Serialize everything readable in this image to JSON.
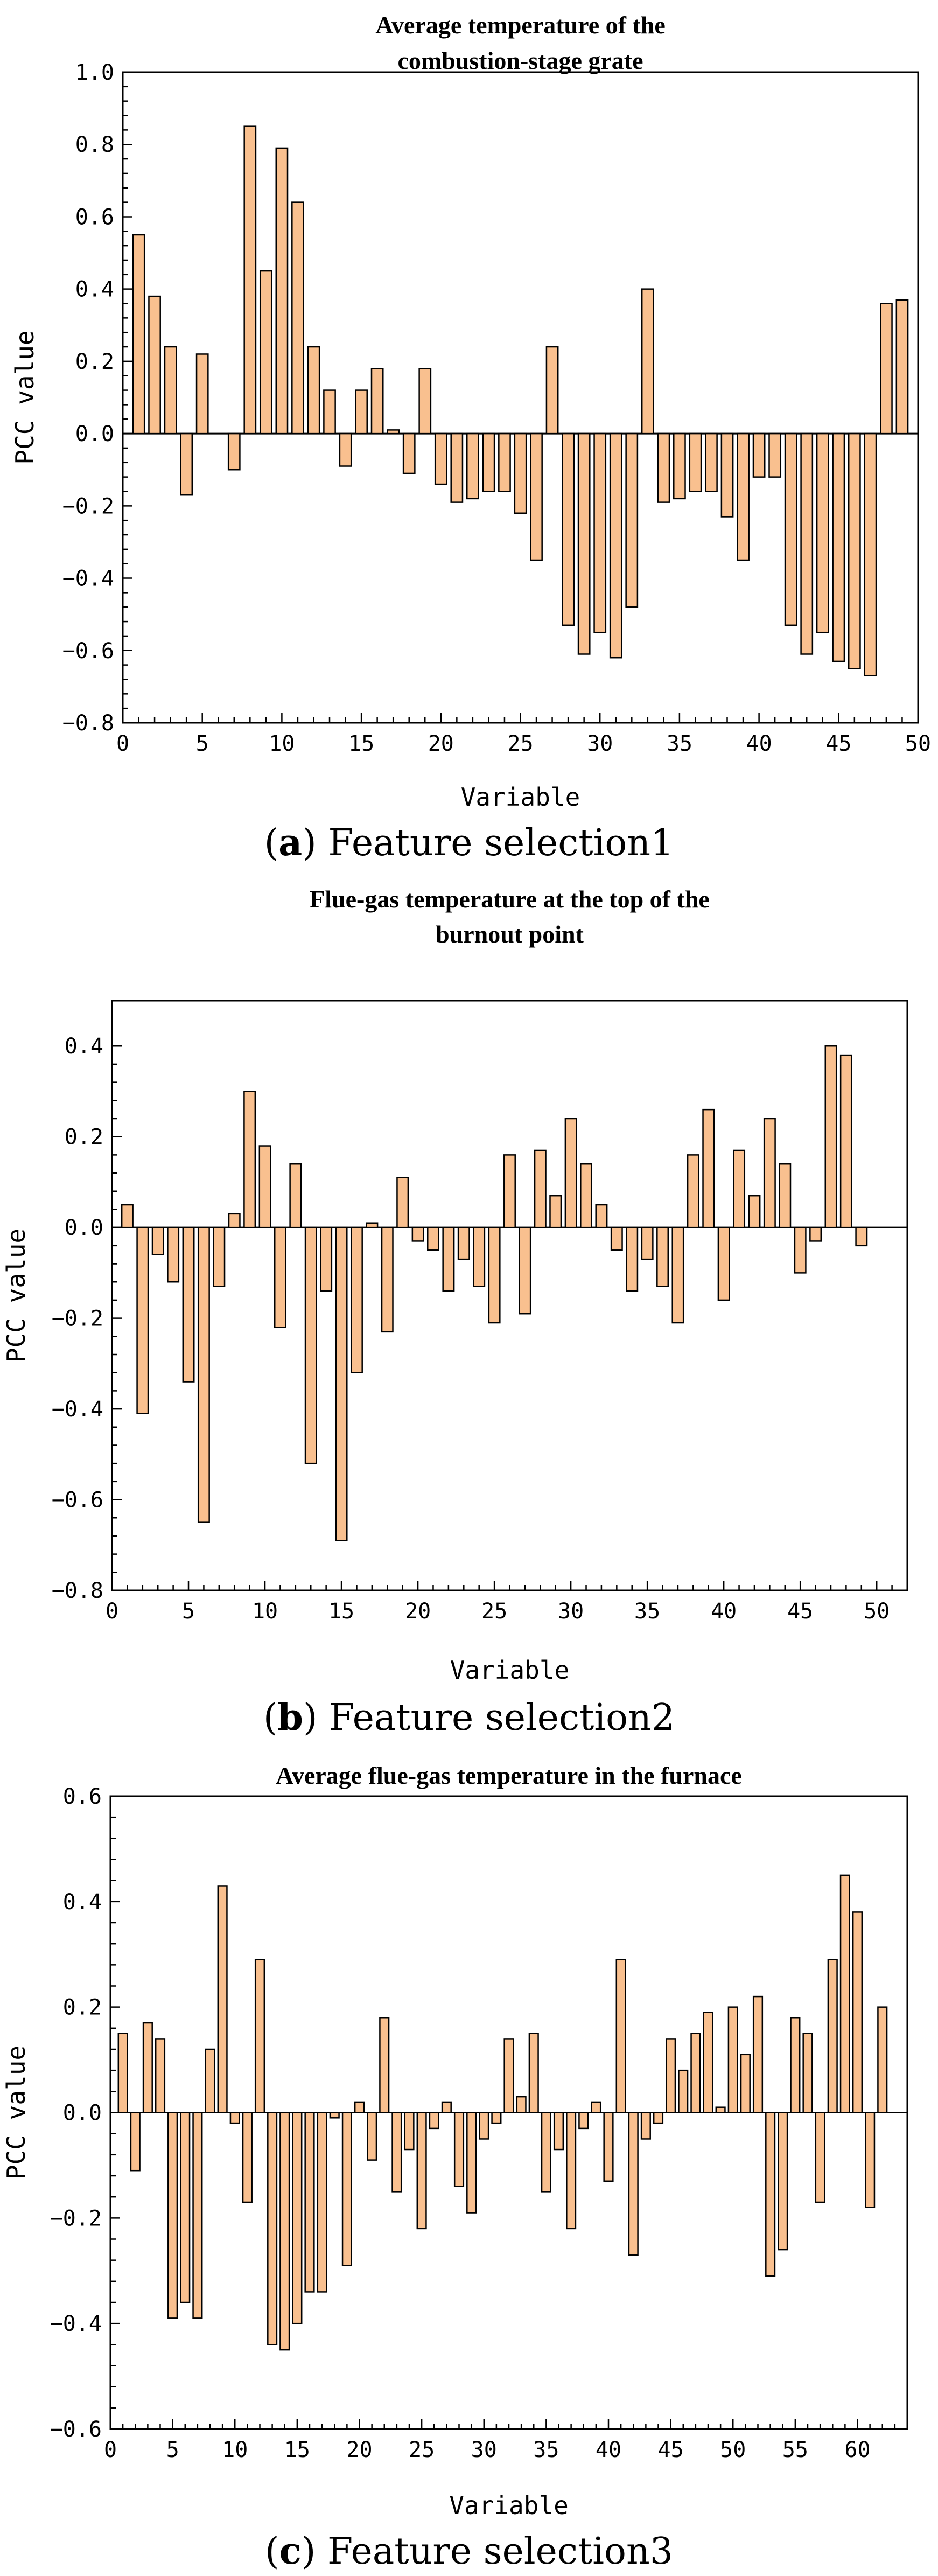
{
  "colors": {
    "bar_fill": "#f9c08f",
    "bar_stroke": "#000000",
    "axis": "#000000"
  },
  "chart_data": [
    {
      "type": "bar",
      "title": [
        "Average temperature of the",
        "combustion-stage grate"
      ],
      "xlabel": "Variable",
      "ylabel": "PCC value",
      "xlim": [
        0,
        50
      ],
      "ylim": [
        -0.8,
        1.0
      ],
      "xticks": [
        0,
        5,
        10,
        15,
        20,
        25,
        30,
        35,
        40,
        45,
        50
      ],
      "yticks": [
        -0.8,
        -0.6,
        -0.4,
        -0.2,
        0.0,
        0.2,
        0.4,
        0.6,
        0.8,
        1.0
      ],
      "ytick_labels": [
        "−0.8",
        "−0.6",
        "−0.4",
        "−0.2",
        "0.0",
        "0.2",
        "0.4",
        "0.6",
        "0.8",
        "1.0"
      ],
      "x": [
        1,
        2,
        3,
        4,
        5,
        7,
        8,
        9,
        10,
        11,
        12,
        13,
        14,
        15,
        16,
        17,
        18,
        19,
        20,
        21,
        22,
        23,
        24,
        25,
        26,
        27,
        28,
        29,
        30,
        31,
        32,
        33,
        34,
        35,
        36,
        37,
        38,
        39,
        40,
        41,
        42,
        43,
        44,
        45,
        46,
        47,
        48,
        49
      ],
      "values": [
        0.55,
        0.38,
        0.24,
        -0.17,
        0.22,
        -0.1,
        0.85,
        0.45,
        0.79,
        0.64,
        0.24,
        0.12,
        -0.09,
        0.12,
        0.18,
        0.01,
        -0.11,
        0.18,
        -0.14,
        -0.19,
        -0.18,
        -0.16,
        -0.16,
        -0.22,
        -0.35,
        0.24,
        -0.53,
        -0.61,
        -0.55,
        -0.62,
        -0.48,
        0.4,
        -0.19,
        -0.18,
        -0.16,
        -0.16,
        -0.23,
        -0.35,
        -0.12,
        -0.12,
        -0.53,
        -0.61,
        -0.55,
        -0.63,
        -0.65,
        -0.67,
        0.36,
        0.37
      ],
      "caption_letter": "a",
      "caption_text": " Feature selection1"
    },
    {
      "type": "bar",
      "title": [
        "Flue-gas temperature at the top of the",
        "burnout point"
      ],
      "xlabel": "Variable",
      "ylabel": "PCC value",
      "xlim": [
        0,
        52
      ],
      "ylim": [
        -0.8,
        0.5
      ],
      "xticks": [
        0,
        5,
        10,
        15,
        20,
        25,
        30,
        35,
        40,
        45,
        50
      ],
      "yticks": [
        -0.8,
        -0.6,
        -0.4,
        -0.2,
        0.0,
        0.2,
        0.4
      ],
      "ytick_labels": [
        "−0.8",
        "−0.6",
        "−0.4",
        "−0.2",
        "0.0",
        "0.2",
        "0.4"
      ],
      "x": [
        1,
        2,
        3,
        4,
        5,
        6,
        7,
        8,
        9,
        10,
        11,
        12,
        13,
        14,
        15,
        16,
        17,
        18,
        19,
        20,
        21,
        22,
        23,
        24,
        25,
        26,
        27,
        28,
        29,
        30,
        31,
        32,
        33,
        34,
        35,
        36,
        37,
        38,
        39,
        40,
        41,
        42,
        43,
        44,
        45,
        46,
        47,
        48,
        49
      ],
      "values": [
        0.05,
        -0.41,
        -0.06,
        -0.12,
        -0.34,
        -0.65,
        -0.13,
        0.03,
        0.3,
        0.18,
        -0.22,
        0.14,
        -0.52,
        -0.14,
        -0.69,
        -0.32,
        0.01,
        -0.23,
        0.11,
        -0.03,
        -0.05,
        -0.14,
        -0.07,
        -0.13,
        -0.21,
        0.16,
        -0.19,
        0.17,
        0.07,
        0.24,
        0.14,
        0.05,
        -0.05,
        -0.14,
        -0.07,
        -0.13,
        -0.21,
        0.16,
        0.26,
        -0.16,
        0.17,
        0.07,
        0.24,
        0.14,
        -0.1,
        -0.03,
        0.4,
        0.38,
        -0.04
      ],
      "caption_letter": "b",
      "caption_text": " Feature selection2"
    },
    {
      "type": "bar",
      "title": [
        "Average flue-gas temperature in the furnace"
      ],
      "xlabel": "Variable",
      "ylabel": "PCC value",
      "xlim": [
        0,
        64
      ],
      "ylim": [
        -0.6,
        0.6
      ],
      "xticks": [
        0,
        5,
        10,
        15,
        20,
        25,
        30,
        35,
        40,
        45,
        50,
        55,
        60
      ],
      "yticks": [
        -0.6,
        -0.4,
        -0.2,
        0.0,
        0.2,
        0.4,
        0.6
      ],
      "ytick_labels": [
        "−0.6",
        "−0.4",
        "−0.2",
        "0.0",
        "0.2",
        "0.4",
        "0.6"
      ],
      "x": [
        1,
        2,
        3,
        4,
        5,
        6,
        7,
        8,
        9,
        10,
        11,
        12,
        13,
        14,
        15,
        16,
        17,
        18,
        19,
        20,
        21,
        22,
        23,
        24,
        25,
        26,
        27,
        28,
        29,
        30,
        31,
        32,
        33,
        34,
        35,
        36,
        37,
        38,
        39,
        40,
        41,
        42,
        43,
        44,
        45,
        46,
        47,
        48,
        49,
        50,
        51,
        52,
        53,
        54,
        55,
        56,
        57,
        58,
        59,
        60,
        61,
        62
      ],
      "values": [
        0.15,
        -0.11,
        0.17,
        0.14,
        -0.39,
        -0.36,
        -0.39,
        0.12,
        0.43,
        -0.02,
        -0.17,
        0.29,
        -0.44,
        -0.45,
        -0.4,
        -0.34,
        -0.34,
        -0.01,
        -0.29,
        0.02,
        -0.09,
        0.18,
        -0.15,
        -0.07,
        -0.22,
        -0.03,
        0.02,
        -0.14,
        -0.19,
        -0.05,
        -0.02,
        0.14,
        0.03,
        0.15,
        -0.15,
        -0.07,
        -0.22,
        -0.03,
        0.02,
        -0.13,
        0.29,
        -0.27,
        -0.05,
        -0.02,
        0.14,
        0.08,
        0.15,
        0.19,
        0.01,
        0.2,
        0.11,
        0.22,
        -0.31,
        -0.26,
        0.18,
        0.15,
        -0.17,
        0.29,
        0.45,
        0.38,
        -0.18,
        0.2
      ],
      "caption_letter": "c",
      "caption_text": " Feature selection3"
    }
  ]
}
